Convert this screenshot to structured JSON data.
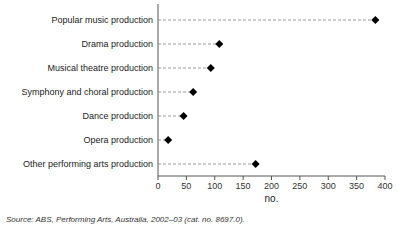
{
  "chart_data": {
    "type": "lollipop",
    "orientation": "horizontal",
    "categories": [
      "Popular music production",
      "Drama production",
      "Musical theatre production",
      "Symphony and choral production",
      "Dance production",
      "Opera production",
      "Other performing arts production"
    ],
    "values": [
      383,
      108,
      93,
      62,
      45,
      18,
      172
    ],
    "color": "black",
    "marker": "diamond",
    "line_style": "dashed",
    "xlim": [
      0,
      400
    ],
    "xticks": [
      0,
      50,
      100,
      150,
      200,
      250,
      300,
      350,
      400
    ],
    "xlabel": "no.",
    "source": "Source: ABS, Performing Arts, Australia, 2002–03 (cat. no. 8697.0).",
    "grid": false
  }
}
